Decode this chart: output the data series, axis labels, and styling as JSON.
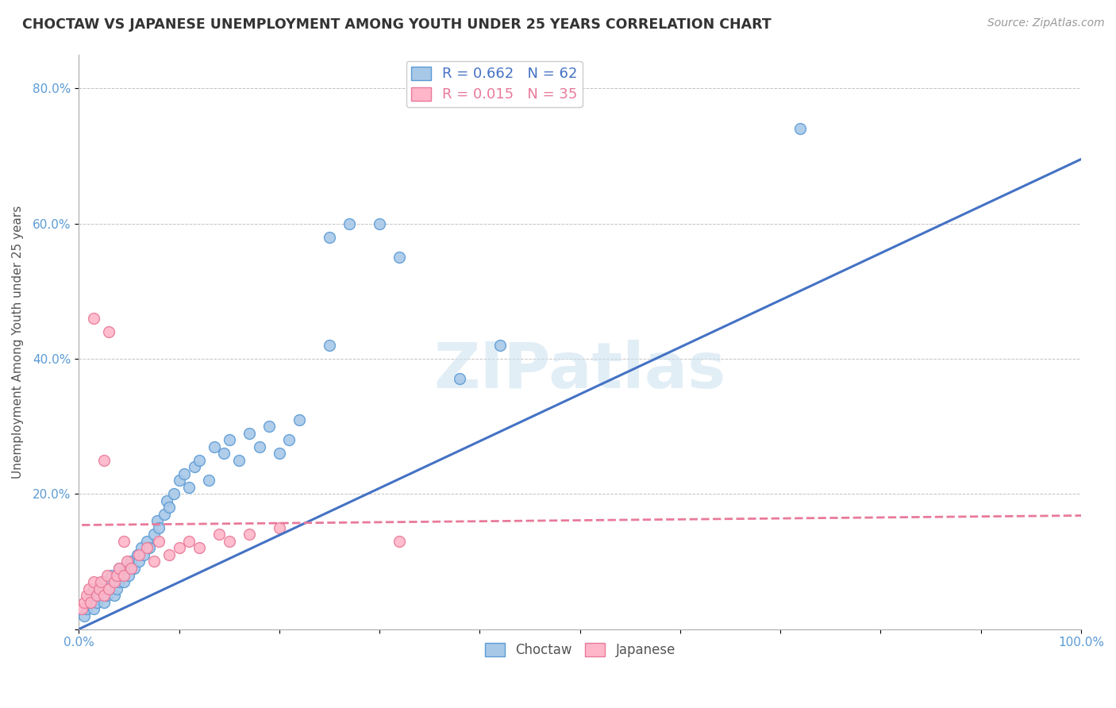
{
  "title": "CHOCTAW VS JAPANESE UNEMPLOYMENT AMONG YOUTH UNDER 25 YEARS CORRELATION CHART",
  "source": "Source: ZipAtlas.com",
  "ylabel": "Unemployment Among Youth under 25 years",
  "xlim": [
    0.0,
    1.0
  ],
  "ylim": [
    0.0,
    0.85
  ],
  "xticks": [
    0.0,
    0.1,
    0.2,
    0.3,
    0.4,
    0.5,
    0.6,
    0.7,
    0.8,
    0.9,
    1.0
  ],
  "yticks": [
    0.0,
    0.2,
    0.4,
    0.6,
    0.8
  ],
  "xtick_labels": [
    "0.0%",
    "",
    "",
    "",
    "",
    "",
    "",
    "",
    "",
    "",
    "100.0%"
  ],
  "ytick_labels": [
    "",
    "20.0%",
    "40.0%",
    "60.0%",
    "80.0%"
  ],
  "choctaw_color": "#a8c8e8",
  "choctaw_edge": "#5b9bd5",
  "japanese_color": "#ffb6c8",
  "japanese_edge": "#e87a9a",
  "trend_blue": "#4472c4",
  "trend_pink": "#e87a9a",
  "choctaw_R": 0.662,
  "choctaw_N": 62,
  "japanese_R": 0.015,
  "japanese_N": 35,
  "watermark": "ZIPatlas",
  "choctaw_x": [
    0.005,
    0.008,
    0.01,
    0.012,
    0.015,
    0.015,
    0.018,
    0.02,
    0.022,
    0.025,
    0.025,
    0.028,
    0.03,
    0.032,
    0.035,
    0.035,
    0.038,
    0.04,
    0.04,
    0.042,
    0.045,
    0.048,
    0.05,
    0.052,
    0.055,
    0.058,
    0.06,
    0.062,
    0.065,
    0.068,
    0.07,
    0.075,
    0.078,
    0.08,
    0.085,
    0.088,
    0.09,
    0.095,
    0.1,
    0.105,
    0.11,
    0.115,
    0.12,
    0.13,
    0.135,
    0.145,
    0.15,
    0.16,
    0.17,
    0.18,
    0.19,
    0.2,
    0.21,
    0.22,
    0.25,
    0.27,
    0.3,
    0.32,
    0.38,
    0.42,
    0.72,
    0.25
  ],
  "choctaw_y": [
    0.02,
    0.03,
    0.04,
    0.05,
    0.03,
    0.06,
    0.04,
    0.05,
    0.06,
    0.04,
    0.07,
    0.05,
    0.06,
    0.08,
    0.05,
    0.07,
    0.06,
    0.07,
    0.09,
    0.08,
    0.07,
    0.09,
    0.08,
    0.1,
    0.09,
    0.11,
    0.1,
    0.12,
    0.11,
    0.13,
    0.12,
    0.14,
    0.16,
    0.15,
    0.17,
    0.19,
    0.18,
    0.2,
    0.22,
    0.23,
    0.21,
    0.24,
    0.25,
    0.22,
    0.27,
    0.26,
    0.28,
    0.25,
    0.29,
    0.27,
    0.3,
    0.26,
    0.28,
    0.31,
    0.58,
    0.6,
    0.6,
    0.55,
    0.37,
    0.42,
    0.74,
    0.42
  ],
  "japanese_x": [
    0.003,
    0.005,
    0.008,
    0.01,
    0.012,
    0.015,
    0.018,
    0.02,
    0.022,
    0.025,
    0.028,
    0.03,
    0.035,
    0.038,
    0.04,
    0.045,
    0.048,
    0.052,
    0.06,
    0.068,
    0.075,
    0.08,
    0.09,
    0.1,
    0.11,
    0.12,
    0.14,
    0.15,
    0.17,
    0.2,
    0.015,
    0.025,
    0.03,
    0.32,
    0.045
  ],
  "japanese_y": [
    0.03,
    0.04,
    0.05,
    0.06,
    0.04,
    0.07,
    0.05,
    0.06,
    0.07,
    0.05,
    0.08,
    0.06,
    0.07,
    0.08,
    0.09,
    0.08,
    0.1,
    0.09,
    0.11,
    0.12,
    0.1,
    0.13,
    0.11,
    0.12,
    0.13,
    0.12,
    0.14,
    0.13,
    0.14,
    0.15,
    0.46,
    0.25,
    0.44,
    0.13,
    0.13
  ],
  "blue_trend_x0": 0.0,
  "blue_trend_y0": 0.0,
  "blue_trend_x1": 1.0,
  "blue_trend_y1": 0.695,
  "pink_trend_x0": 0.003,
  "pink_trend_y0": 0.154,
  "pink_trend_x1": 1.0,
  "pink_trend_y1": 0.168
}
